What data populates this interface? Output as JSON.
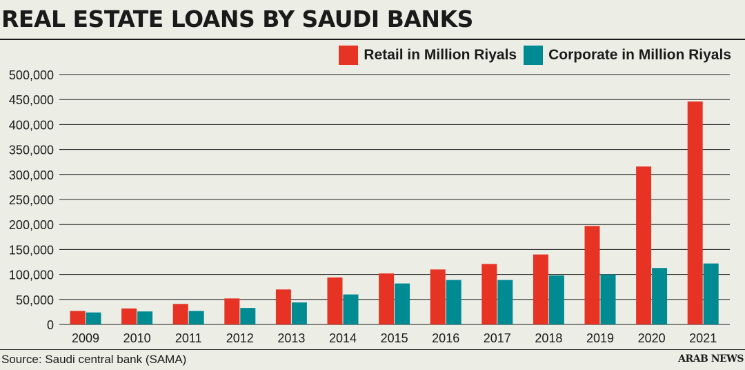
{
  "title": "REAL ESTATE LOANS BY SAUDI BANKS",
  "source": "Source: Saudi central bank (SAMA)",
  "brand": "ARAB NEWS",
  "colors": {
    "retail": "#e63323",
    "corporate": "#008b93",
    "text": "#1a1a1a",
    "grid": "#1a1a1a",
    "background": "#eceee6"
  },
  "chart_data": {
    "type": "bar",
    "title": "REAL ESTATE LOANS BY SAUDI BANKS",
    "xlabel": "",
    "ylabel": "",
    "ylim": [
      0,
      500000
    ],
    "yticks": [
      0,
      50000,
      100000,
      150000,
      200000,
      250000,
      300000,
      350000,
      400000,
      450000,
      500000
    ],
    "ytick_labels": [
      "0",
      "50,000",
      "100,000",
      "150,000",
      "200,000",
      "250,000",
      "300,000",
      "350,000",
      "400,000",
      "450,000",
      "500,000"
    ],
    "grid": true,
    "legend_position": "top-right",
    "categories": [
      "2009",
      "2010",
      "2011",
      "2012",
      "2013",
      "2014",
      "2015",
      "2016",
      "2017",
      "2018",
      "2019",
      "2020",
      "2021"
    ],
    "series": [
      {
        "name": "Retail in Million Riyals",
        "color": "#e63323",
        "values": [
          27000,
          32000,
          41000,
          52000,
          70000,
          94000,
          102000,
          110000,
          121000,
          140000,
          197000,
          316000,
          446000
        ]
      },
      {
        "name": "Corporate in Million Riyals",
        "color": "#008b93",
        "values": [
          24000,
          26000,
          27000,
          33000,
          44000,
          60000,
          82000,
          89000,
          89000,
          98000,
          100000,
          113000,
          122000
        ]
      }
    ]
  }
}
